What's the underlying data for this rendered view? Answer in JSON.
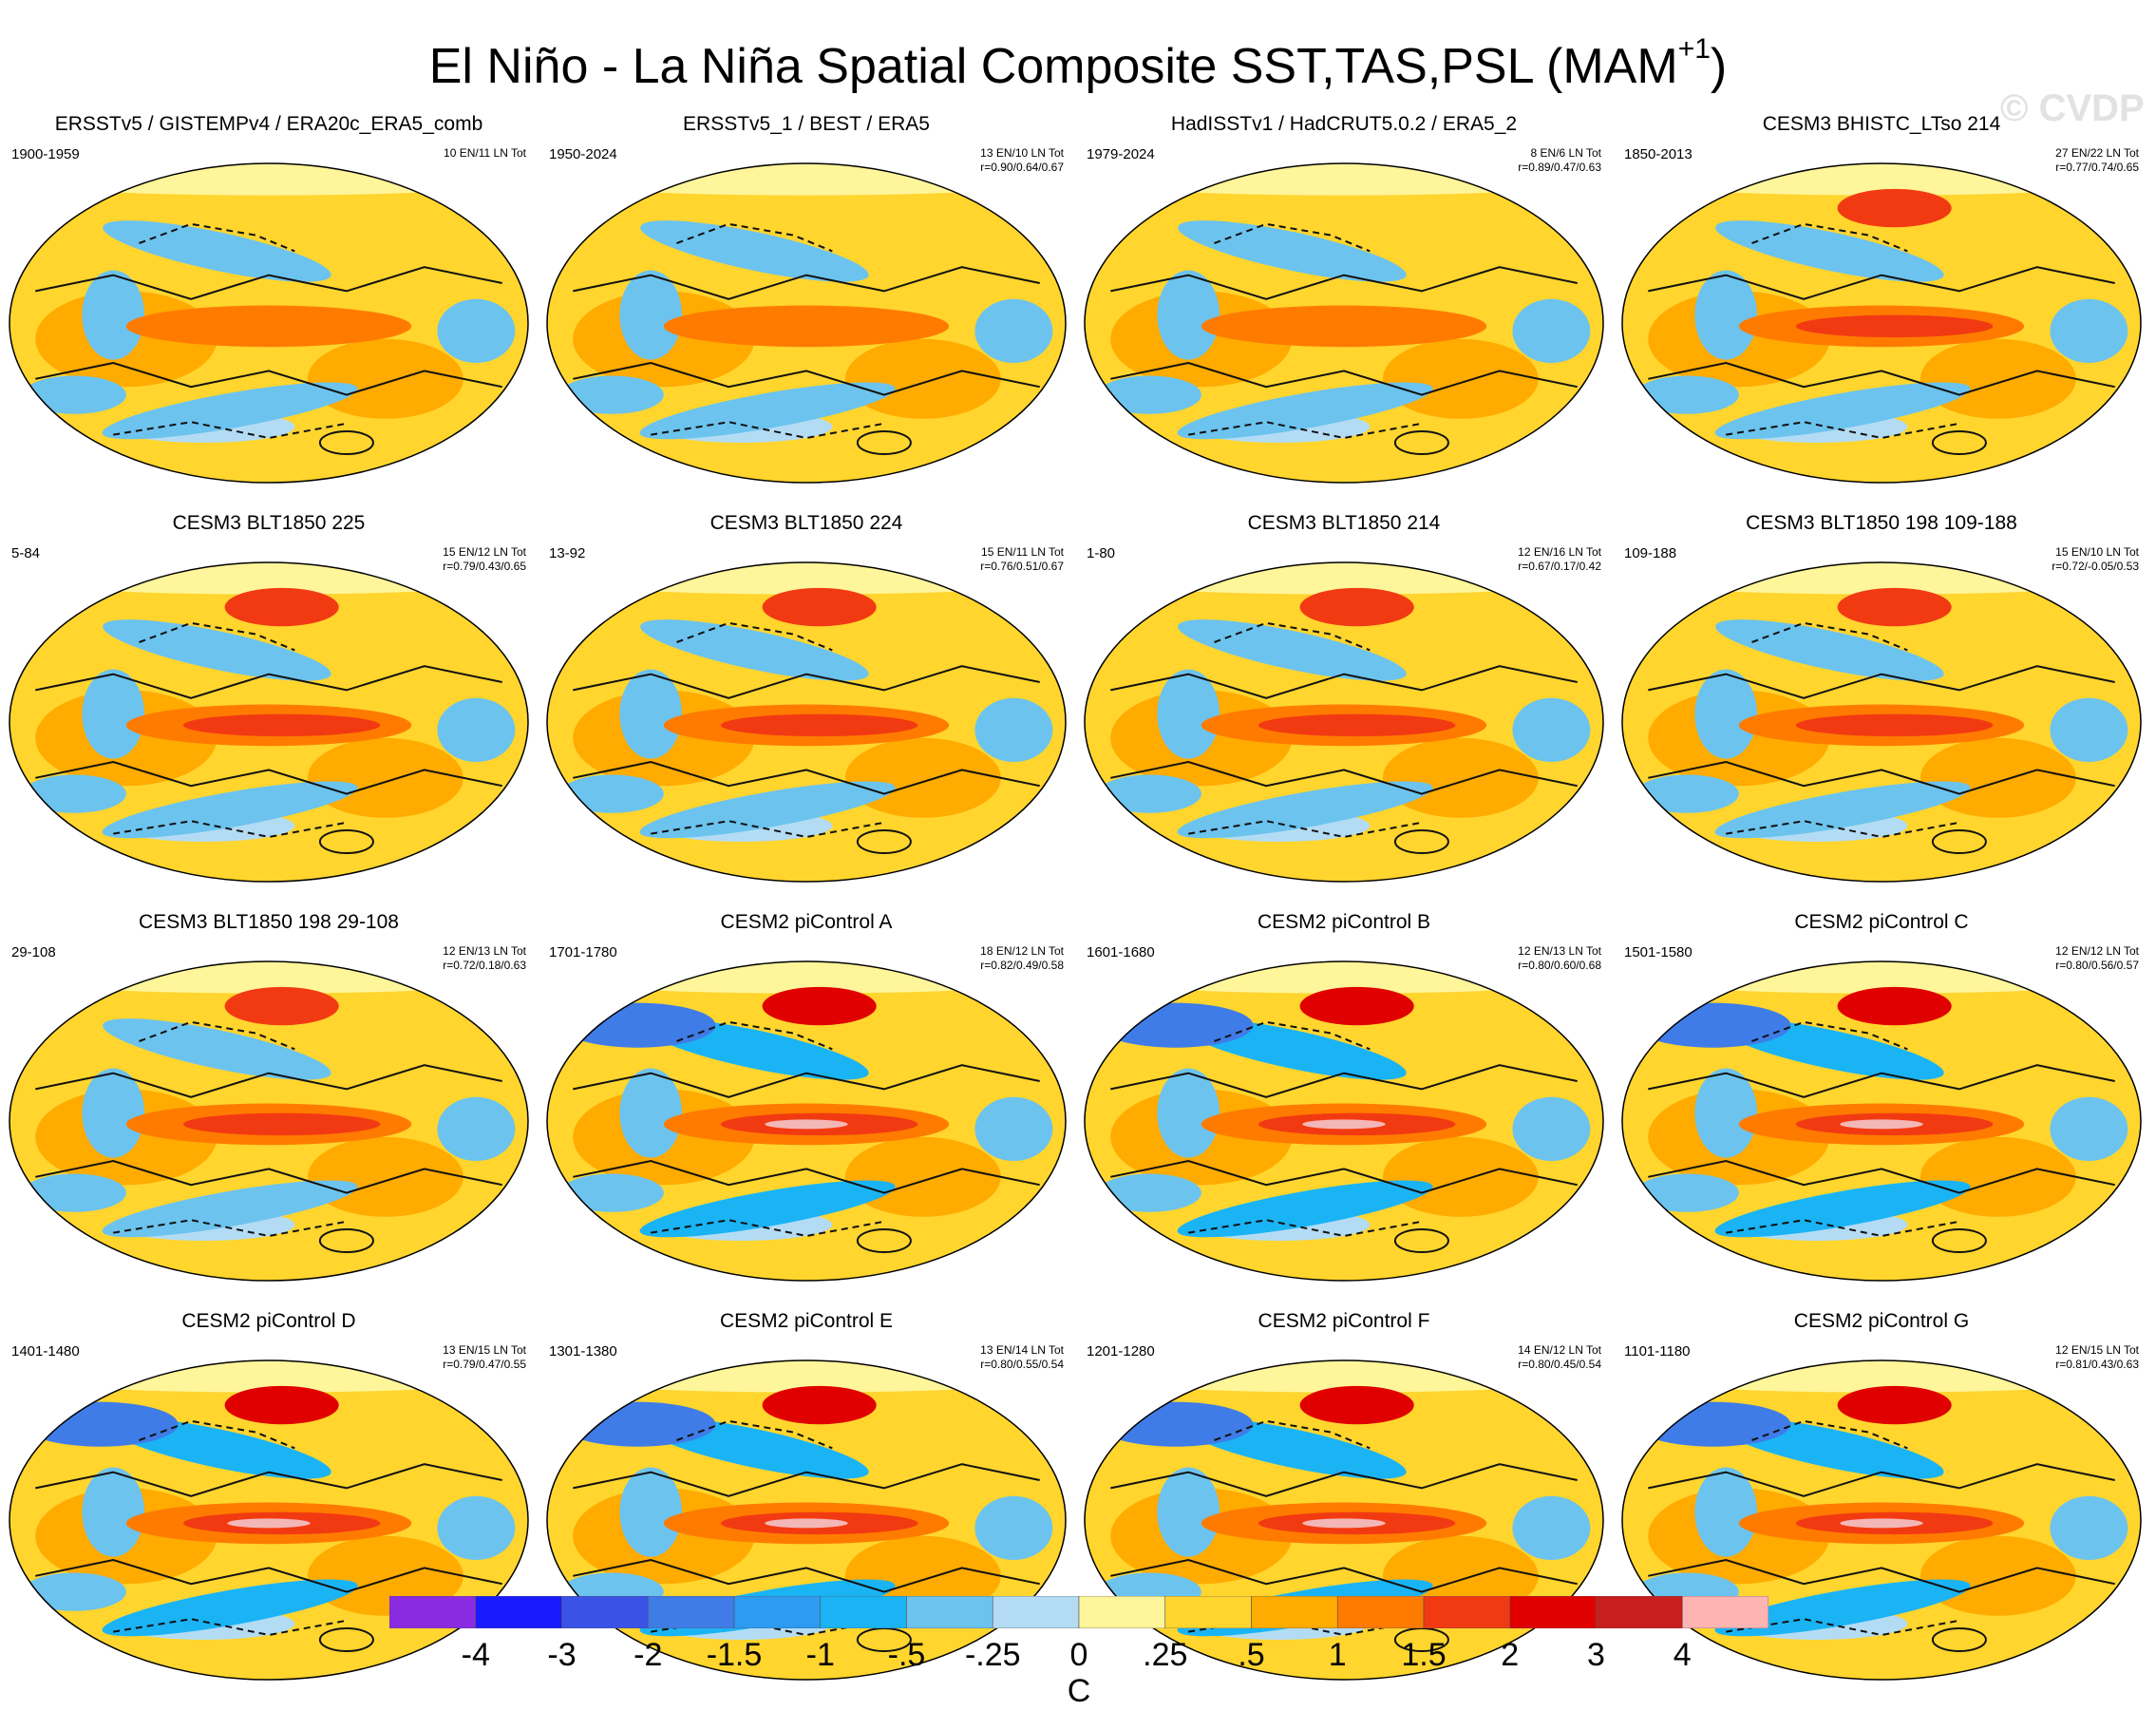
{
  "title": "El Niño - La Niña Spatial Composite SST,TAS,PSL (MAM",
  "title_superscript": "+1",
  "title_close": ")",
  "watermark": "© CVDP",
  "chart_data": {
    "type": "heatmap",
    "projection": "Robinson-like global map, Pacific-centered",
    "panels": [
      {
        "title": "ERSSTv5 / GISTEMPv4 / ERA20c_ERA5_comb",
        "years": "1900-1959",
        "events": "10 EN/11 LN Tot",
        "corr": "",
        "pattern": "obs"
      },
      {
        "title": "ERSSTv5_1 / BEST / ERA5",
        "years": "1950-2024",
        "events": "13 EN/10 LN Tot",
        "corr": "r=0.90/0.64/0.67",
        "pattern": "obs"
      },
      {
        "title": "HadISSTv1 / HadCRUT5.0.2 / ERA5_2",
        "years": "1979-2024",
        "events": "8 EN/6 LN Tot",
        "corr": "r=0.89/0.47/0.63",
        "pattern": "obs"
      },
      {
        "title": "CESM3 BHISTC_LTso 214",
        "years": "1850-2013",
        "events": "27 EN/22 LN Tot",
        "corr": "r=0.77/0.74/0.65",
        "pattern": "cesm3"
      },
      {
        "title": "CESM3 BLT1850 225",
        "years": "5-84",
        "events": "15 EN/12 LN Tot",
        "corr": "r=0.79/0.43/0.65",
        "pattern": "cesm3"
      },
      {
        "title": "CESM3 BLT1850 224",
        "years": "13-92",
        "events": "15 EN/11 LN Tot",
        "corr": "r=0.76/0.51/0.67",
        "pattern": "cesm3"
      },
      {
        "title": "CESM3 BLT1850 214",
        "years": "1-80",
        "events": "12 EN/16 LN Tot",
        "corr": "r=0.67/0.17/0.42",
        "pattern": "cesm3"
      },
      {
        "title": "CESM3 BLT1850 198 109-188",
        "years": "109-188",
        "events": "15 EN/10 LN Tot",
        "corr": "r=0.72/-0.05/0.53",
        "pattern": "cesm3"
      },
      {
        "title": "CESM3 BLT1850 198 29-108",
        "years": "29-108",
        "events": "12 EN/13 LN Tot",
        "corr": "r=0.72/0.18/0.63",
        "pattern": "cesm3"
      },
      {
        "title": "CESM2 piControl A",
        "years": "1701-1780",
        "events": "18 EN/12 LN Tot",
        "corr": "r=0.82/0.49/0.58",
        "pattern": "cesm2"
      },
      {
        "title": "CESM2 piControl B",
        "years": "1601-1680",
        "events": "12 EN/13 LN Tot",
        "corr": "r=0.80/0.60/0.68",
        "pattern": "cesm2"
      },
      {
        "title": "CESM2 piControl C",
        "years": "1501-1580",
        "events": "12 EN/12 LN Tot",
        "corr": "r=0.80/0.56/0.57",
        "pattern": "cesm2"
      },
      {
        "title": "CESM2 piControl D",
        "years": "1401-1480",
        "events": "13 EN/15 LN Tot",
        "corr": "r=0.79/0.47/0.55",
        "pattern": "cesm2"
      },
      {
        "title": "CESM2 piControl E",
        "years": "1301-1380",
        "events": "13 EN/14 LN Tot",
        "corr": "r=0.80/0.55/0.54",
        "pattern": "cesm2"
      },
      {
        "title": "CESM2 piControl F",
        "years": "1201-1280",
        "events": "14 EN/12 LN Tot",
        "corr": "r=0.80/0.45/0.54",
        "pattern": "cesm2"
      },
      {
        "title": "CESM2 piControl G",
        "years": "1101-1180",
        "events": "12 EN/15 LN Tot",
        "corr": "r=0.81/0.43/0.63",
        "pattern": "cesm2"
      }
    ],
    "colorbar": {
      "labels": [
        "-4",
        "-3",
        "-2",
        "-1.5",
        "-1",
        "-.5",
        "-.25",
        "0",
        ".25",
        ".5",
        "1",
        "1.5",
        "2",
        "3",
        "4"
      ],
      "colors": [
        "#8a2be2",
        "#1a1aff",
        "#3a52e6",
        "#3f7ce8",
        "#2c9bf0",
        "#1ab4f5",
        "#6cc3ee",
        "#b3dcf4",
        "#fff59a",
        "#ffd52e",
        "#ffab00",
        "#ff7b00",
        "#f23a12",
        "#e00000",
        "#c81e1e",
        "#ffb4b4"
      ],
      "unit": "C"
    }
  }
}
